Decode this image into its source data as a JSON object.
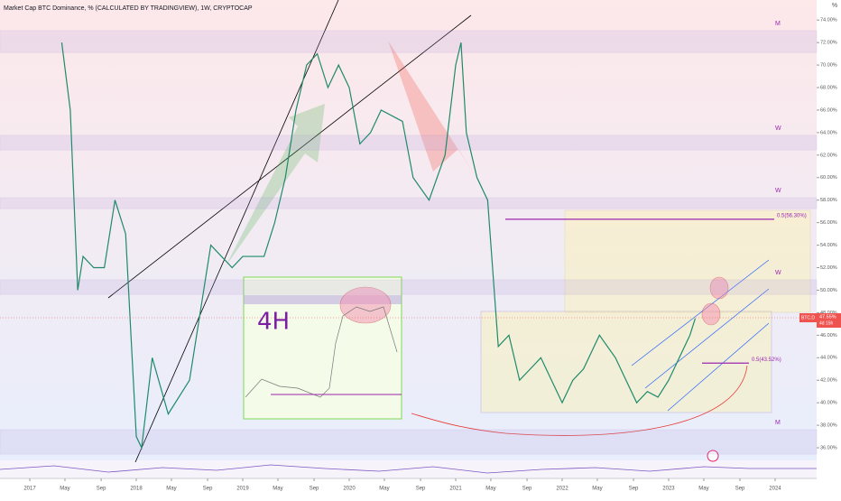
{
  "chart_data": {
    "type": "line",
    "title": "Market Cap BTC Dominance, % (CALCULATED BY TRADINGVIEW), 1W, CRYPTOCAP",
    "y_unit": "%",
    "symbol": "BTC.D",
    "last_value": 47.55,
    "last_label": "47.55%",
    "countdown": "4d 15h",
    "inset_label": "4H",
    "xlim": [
      2016.72,
      2024.39
    ],
    "ylim": [
      34.88,
      75.78
    ],
    "xticks": [
      2017,
      {
        "value": 2017.33,
        "label": "May"
      },
      {
        "value": 2017.67,
        "label": "Sep"
      },
      2018,
      {
        "value": 2018.33,
        "label": "May"
      },
      {
        "value": 2018.67,
        "label": "Sep"
      },
      2019,
      {
        "value": 2019.33,
        "label": "May"
      },
      {
        "value": 2019.67,
        "label": "Sep"
      },
      2020,
      {
        "value": 2020.33,
        "label": "May"
      },
      {
        "value": 2020.67,
        "label": "Sep"
      },
      2021,
      {
        "value": 2021.33,
        "label": "May"
      },
      {
        "value": 2021.67,
        "label": "Sep"
      },
      2022,
      {
        "value": 2022.33,
        "label": "May"
      },
      {
        "value": 2022.67,
        "label": "Sep"
      },
      2023,
      {
        "value": 2023.33,
        "label": "May"
      },
      {
        "value": 2023.67,
        "label": "Sep"
      },
      2024
    ],
    "yticks": [
      {
        "value": 36,
        "label": "36.00%"
      },
      {
        "value": 38,
        "label": "38.00%"
      },
      {
        "value": 40,
        "label": "40.00%"
      },
      {
        "value": 42,
        "label": "42.00%"
      },
      {
        "value": 44,
        "label": "44.00%"
      },
      {
        "value": 46,
        "label": "46.00%"
      },
      {
        "value": 48,
        "label": "48.00%"
      },
      {
        "value": 50,
        "label": "50.00%"
      },
      {
        "value": 52,
        "label": "52.00%"
      },
      {
        "value": 54,
        "label": "54.00%"
      },
      {
        "value": 56,
        "label": "56.00%"
      },
      {
        "value": 58,
        "label": "58.00%"
      },
      {
        "value": 60,
        "label": "60.00%"
      },
      {
        "value": 62,
        "label": "62.00%"
      },
      {
        "value": 64,
        "label": "64.00%"
      },
      {
        "value": 66,
        "label": "66.00%"
      },
      {
        "value": 68,
        "label": "68.00%"
      },
      {
        "value": 70,
        "label": "70.00%"
      },
      {
        "value": 72,
        "label": "72.00%"
      },
      {
        "value": 74,
        "label": "74.00%"
      }
    ],
    "series": [
      {
        "name": "BTC.D",
        "color": "#1f8a6a",
        "x": [
          2017.3,
          2017.38,
          2017.45,
          2017.5,
          2017.6,
          2017.7,
          2017.8,
          2017.9,
          2018.0,
          2018.05,
          2018.15,
          2018.3,
          2018.5,
          2018.7,
          2018.9,
          2019.0,
          2019.2,
          2019.3,
          2019.4,
          2019.5,
          2019.6,
          2019.7,
          2019.8,
          2019.9,
          2020.0,
          2020.1,
          2020.2,
          2020.3,
          2020.5,
          2020.6,
          2020.75,
          2020.9,
          2021.0,
          2021.05,
          2021.1,
          2021.2,
          2021.3,
          2021.4,
          2021.5,
          2021.6,
          2021.7,
          2021.8,
          2021.9,
          2022.0,
          2022.1,
          2022.2,
          2022.35,
          2022.5,
          2022.6,
          2022.7,
          2022.8,
          2022.9,
          2023.0,
          2023.1,
          2023.2,
          2023.25
        ],
        "values": [
          72,
          66,
          50,
          53,
          52,
          52,
          58,
          55,
          37,
          36,
          44,
          39,
          42,
          54,
          52,
          53,
          53,
          56,
          60,
          66,
          70,
          71,
          68,
          70,
          68,
          63,
          64,
          66,
          65,
          60,
          58,
          62,
          70,
          72,
          64,
          60,
          58,
          45,
          46,
          42,
          43,
          44,
          42,
          40,
          42,
          43,
          46,
          44,
          42,
          40,
          41,
          40.5,
          42,
          44,
          46,
          47.5
        ]
      }
    ],
    "zones": [
      {
        "label": "M",
        "range": [
          73.05,
          71.12
        ]
      },
      {
        "label": "W",
        "range": [
          63.75,
          62.46
        ]
      },
      {
        "label": "W",
        "range": [
          58.21,
          57.25
        ]
      },
      {
        "label": "W",
        "range": [
          50.92,
          49.63
        ]
      },
      {
        "label": "M",
        "range": [
          37.6,
          35.44
        ]
      }
    ],
    "fib": [
      {
        "label": "0.5(56.30%)",
        "value": 56.3
      },
      {
        "label": "0.5(43.52%)",
        "value": 43.52
      }
    ]
  }
}
